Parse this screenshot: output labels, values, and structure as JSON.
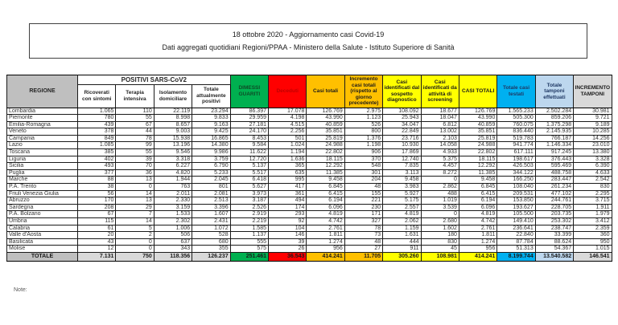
{
  "title": {
    "line1": "18 ottobre 2020 - Aggiornamento casi Covid-19",
    "line2": "Dati aggregati quotidiani Regioni/PPAA - Ministero della Salute - Istituto Superiore di Sanità"
  },
  "note_label": "Note:",
  "colors": {
    "green": "#00B050",
    "red": "#FF0000",
    "dark_red_text": "#C00000",
    "orange": "#FFC000",
    "yellow": "#FFFF00",
    "cyan": "#00B0F0",
    "light_blue": "#BDD7EE",
    "header_gray": "#BFBFBF",
    "light_gray": "#D9D9D9"
  },
  "table": {
    "group_header": "POSITIVI SARS-CoV2",
    "headers": {
      "regione": "REGIONE",
      "ricoverati": "Ricoverati con sintomi",
      "terapia": "Terapia intensiva",
      "isolamento": "Isolamento domiciliare",
      "attualmente_positivi": "Totale attualmente positivi",
      "dimessi_guariti": "DIMESSI GUARITI",
      "deceduti": "Deceduti",
      "casi_totali": "Casi totali",
      "incremento_casi": "Incremento casi totali (rispetto al giorno precedente)",
      "sospetto_diagnostico": "Casi identificati dal sospetto diagnostico",
      "screening": "Casi identificati da attività di screening",
      "casi_totali_2": "CASI TOTALI",
      "casi_testati": "Totale casi testati",
      "tamponi": "Totale tamponi effettuati",
      "incremento_tamponi": "INCREMENTO TAMPONI"
    },
    "rows": [
      {
        "regione": "Lombardia",
        "values": [
          "1.065",
          "110",
          "22.119",
          "23.294",
          "86.397",
          "17.078",
          "126.769",
          "2.975",
          "108.092",
          "18.677",
          "126.769",
          "1.565.233",
          "2.502.284",
          "30.981"
        ]
      },
      {
        "regione": "Piemonte",
        "values": [
          "780",
          "55",
          "8.998",
          "9.833",
          "29.959",
          "4.198",
          "43.990",
          "1.123",
          "25.943",
          "18.047",
          "43.990",
          "505.300",
          "859.206",
          "9.721"
        ]
      },
      {
        "regione": "Emilia-Romagna",
        "values": [
          "439",
          "67",
          "8.657",
          "9.163",
          "27.181",
          "4.515",
          "40.859",
          "526",
          "34.047",
          "6.812",
          "40.859",
          "760.075",
          "1.375.298",
          "9.189"
        ]
      },
      {
        "regione": "Veneto",
        "values": [
          "378",
          "44",
          "9.003",
          "9.425",
          "24.170",
          "2.256",
          "35.851",
          "800",
          "22.849",
          "13.002",
          "35.851",
          "836.440",
          "2.145.935",
          "10.285"
        ]
      },
      {
        "regione": "Campania",
        "values": [
          "849",
          "78",
          "15.938",
          "16.865",
          "8.453",
          "501",
          "25.819",
          "1.376",
          "23.716",
          "2.103",
          "25.819",
          "519.783",
          "766.187",
          "14.256"
        ]
      },
      {
        "regione": "Lazio",
        "values": [
          "1.085",
          "99",
          "13.196",
          "14.380",
          "9.584",
          "1.024",
          "24.988",
          "1.198",
          "10.930",
          "14.058",
          "24.988",
          "941.774",
          "1.146.334",
          "23.010"
        ]
      },
      {
        "regione": "Toscana",
        "values": [
          "385",
          "55",
          "9.546",
          "9.986",
          "11.622",
          "1.194",
          "22.802",
          "906",
          "17.869",
          "4.933",
          "22.802",
          "617.111",
          "917.245",
          "13.380"
        ]
      },
      {
        "regione": "Liguria",
        "values": [
          "402",
          "39",
          "3.318",
          "3.759",
          "12.720",
          "1.636",
          "18.115",
          "370",
          "12.740",
          "5.375",
          "18.115",
          "198.617",
          "376.443",
          "3.328"
        ]
      },
      {
        "regione": "Sicilia",
        "values": [
          "493",
          "70",
          "6.227",
          "6.790",
          "5.137",
          "365",
          "12.292",
          "548",
          "7.835",
          "4.457",
          "12.292",
          "426.503",
          "595.469",
          "6.390"
        ]
      },
      {
        "regione": "Puglia",
        "values": [
          "377",
          "36",
          "4.820",
          "5.233",
          "5.517",
          "635",
          "11.385",
          "301",
          "3.113",
          "8.272",
          "11.385",
          "344.122",
          "488.758",
          "4.633"
        ]
      },
      {
        "regione": "Marche",
        "values": [
          "88",
          "13",
          "1.944",
          "2.045",
          "6.418",
          "995",
          "9.458",
          "204",
          "9.458",
          "0",
          "9.458",
          "166.250",
          "283.447",
          "2.542"
        ]
      },
      {
        "regione": "P.A. Trento",
        "values": [
          "38",
          "0",
          "763",
          "801",
          "5.627",
          "417",
          "6.845",
          "48",
          "3.983",
          "2.862",
          "6.845",
          "108.040",
          "261.234",
          "830"
        ]
      },
      {
        "regione": "Friuli Venezia Giulia",
        "values": [
          "56",
          "14",
          "2.011",
          "2.081",
          "3.973",
          "361",
          "6.415",
          "155",
          "5.927",
          "488",
          "6.415",
          "209.531",
          "477.102",
          "2.295"
        ]
      },
      {
        "regione": "Abruzzo",
        "values": [
          "170",
          "13",
          "2.330",
          "2.513",
          "3.187",
          "494",
          "6.194",
          "221",
          "5.175",
          "1.019",
          "6.194",
          "153.850",
          "244.761",
          "3.715"
        ]
      },
      {
        "regione": "Sardegna",
        "values": [
          "208",
          "29",
          "3.159",
          "3.396",
          "2.526",
          "174",
          "6.096",
          "230",
          "2.557",
          "3.539",
          "6.096",
          "193.627",
          "228.705",
          "1.911"
        ]
      },
      {
        "regione": "P.A. Bolzano",
        "values": [
          "67",
          "7",
          "1.533",
          "1.607",
          "2.919",
          "293",
          "4.819",
          "171",
          "4.819",
          "0",
          "4.819",
          "105.500",
          "203.735",
          "1.979"
        ]
      },
      {
        "regione": "Umbria",
        "values": [
          "115",
          "14",
          "2.302",
          "2.431",
          "2.219",
          "92",
          "4.742",
          "327",
          "2.062",
          "2.680",
          "4.742",
          "149.410",
          "253.302",
          "3.412"
        ]
      },
      {
        "regione": "Calabria",
        "values": [
          "61",
          "5",
          "1.006",
          "1.072",
          "1.585",
          "104",
          "2.761",
          "78",
          "1.159",
          "1.602",
          "2.761",
          "236.641",
          "238.747",
          "2.359"
        ]
      },
      {
        "regione": "Valle d'Aosta",
        "values": [
          "20",
          "2",
          "506",
          "528",
          "1.137",
          "146",
          "1.811",
          "73",
          "1.631",
          "180",
          "1.811",
          "22.840",
          "33.399",
          "360"
        ]
      },
      {
        "regione": "Basilicata",
        "values": [
          "43",
          "0",
          "637",
          "680",
          "555",
          "39",
          "1.274",
          "48",
          "444",
          "830",
          "1.274",
          "87.784",
          "88.624",
          "950"
        ]
      },
      {
        "regione": "Molise",
        "values": [
          "12",
          "0",
          "343",
          "355",
          "575",
          "26",
          "956",
          "27",
          "911",
          "45",
          "956",
          "51.313",
          "54.367",
          "1.015"
        ]
      }
    ],
    "totale": {
      "regione": "TOTALE",
      "values": [
        "7.131",
        "750",
        "118.356",
        "126.237",
        "251.461",
        "36.543",
        "414.241",
        "11.705",
        "305.260",
        "108.981",
        "414.241",
        "8.199.744",
        "13.540.582",
        "146.541"
      ]
    }
  }
}
